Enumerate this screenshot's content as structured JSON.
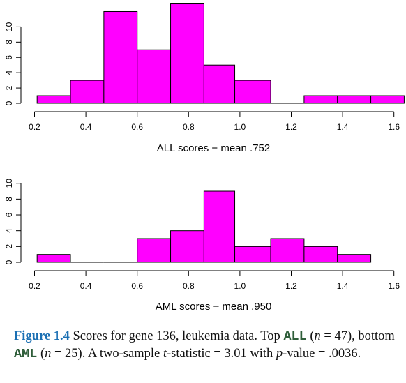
{
  "chart_data": [
    {
      "type": "bar",
      "bin_edges": [
        0.21,
        0.34,
        0.47,
        0.6,
        0.73,
        0.86,
        0.98,
        1.12,
        1.25,
        1.38,
        1.51,
        1.64
      ],
      "values": [
        1,
        3,
        12,
        7,
        13,
        5,
        3,
        0,
        1,
        1,
        1
      ],
      "xlabel": "ALL scores − mean .752",
      "xticks": [
        "0.2",
        "0.4",
        "0.6",
        "0.8",
        "1.0",
        "1.2",
        "1.4",
        "1.6"
      ],
      "yticks": [
        "0",
        "2",
        "4",
        "6",
        "8",
        "10"
      ],
      "xlim": [
        0.2,
        1.64
      ],
      "ylim": [
        0,
        13
      ],
      "color": "#ff00ff"
    },
    {
      "type": "bar",
      "bin_edges": [
        0.21,
        0.34,
        0.47,
        0.6,
        0.73,
        0.86,
        0.98,
        1.12,
        1.25,
        1.38,
        1.51
      ],
      "values": [
        1,
        0,
        0,
        3,
        4,
        9,
        2,
        3,
        2,
        1
      ],
      "xlabel": "AML scores − mean .950",
      "xticks": [
        "0.2",
        "0.4",
        "0.6",
        "0.8",
        "1.0",
        "1.2",
        "1.4",
        "1.6"
      ],
      "yticks": [
        "0",
        "2",
        "4",
        "6",
        "8",
        "10"
      ],
      "xlim": [
        0.2,
        1.64
      ],
      "ylim": [
        0,
        13
      ],
      "color": "#ff00ff"
    }
  ],
  "caption": {
    "label": "Figure 1.4",
    "t1": "Scores for gene 136, leukemia data. Top",
    "all": "ALL",
    "t2": "(",
    "n": "n",
    "t3": " = 47), bottom",
    "aml": "AML",
    "t4": " (",
    "t5": " = 25). A two-sample",
    "t": "t",
    "t6": "-statistic = 3.01 with",
    "p": "p",
    "t7": "-value = .0036."
  }
}
